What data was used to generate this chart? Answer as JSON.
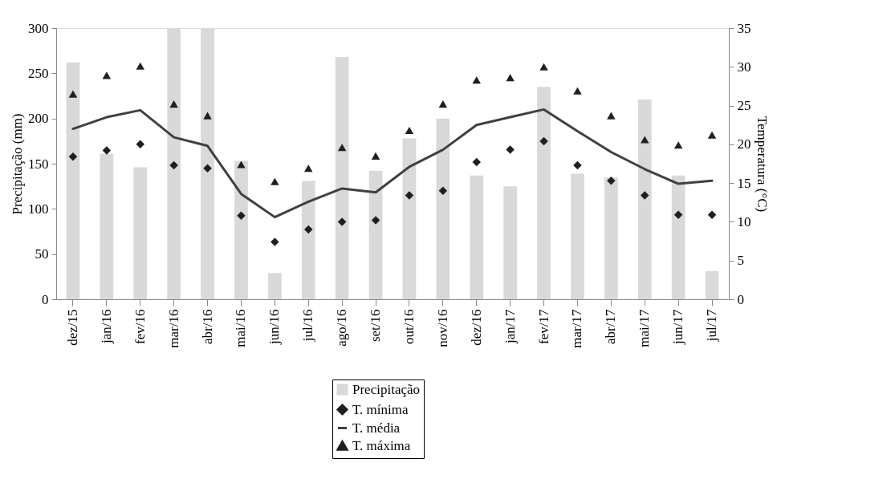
{
  "chart_data": {
    "type": "bar",
    "ylabel": "Precipitação (mm)",
    "y2label": "Temperatura (°C)",
    "categories": [
      "dez/15",
      "jan/16",
      "fev/16",
      "mar/16",
      "abr/16",
      "mai/16",
      "jun/16",
      "jul/16",
      "ago/16",
      "set/16",
      "out/16",
      "nov/16",
      "dez/16",
      "jan/17",
      "fev/17",
      "mar/17",
      "abr/17",
      "mai/17",
      "jun/17",
      "jul/17"
    ],
    "series": [
      {
        "name": "Precipitação",
        "color": "#d9d9d9",
        "values": [
          262,
          161,
          146,
          300,
          300,
          153,
          29,
          131,
          268,
          142,
          178,
          200,
          137,
          125,
          235,
          139,
          135,
          221,
          137,
          31
        ]
      },
      {
        "name": "T. mínima",
        "type": "scatter",
        "axis": "y2",
        "marker": "diamond",
        "color": "#1f1f1f",
        "values": [
          18.4,
          19.2,
          20.0,
          17.3,
          16.9,
          10.8,
          7.4,
          9.0,
          10.0,
          10.2,
          13.4,
          14.0,
          17.7,
          19.3,
          20.4,
          17.3,
          15.3,
          13.4,
          10.9,
          10.9
        ]
      },
      {
        "name": "T. média",
        "type": "line",
        "axis": "y2",
        "color": "#404040",
        "values": [
          22.0,
          23.5,
          24.4,
          20.9,
          19.8,
          13.6,
          10.6,
          12.6,
          14.3,
          13.8,
          17.1,
          19.3,
          22.5,
          23.5,
          24.5,
          21.7,
          19.0,
          16.8,
          14.9,
          15.3
        ]
      },
      {
        "name": "T. máxima",
        "type": "scatter",
        "axis": "y2",
        "marker": "triangle",
        "color": "#1f1f1f",
        "values": [
          26.5,
          28.9,
          30.1,
          25.2,
          23.7,
          17.4,
          15.2,
          16.9,
          19.6,
          18.5,
          21.8,
          25.2,
          28.3,
          28.6,
          30.0,
          26.9,
          23.7,
          20.6,
          19.9,
          21.2
        ]
      }
    ],
    "ylim": [
      0,
      300
    ],
    "yticks": [
      0,
      50,
      100,
      150,
      200,
      250,
      300
    ],
    "y2lim": [
      0,
      35
    ],
    "y2ticks": [
      0,
      5,
      10,
      15,
      20,
      25,
      30,
      35
    ],
    "grid": false,
    "legend": "bottom"
  }
}
